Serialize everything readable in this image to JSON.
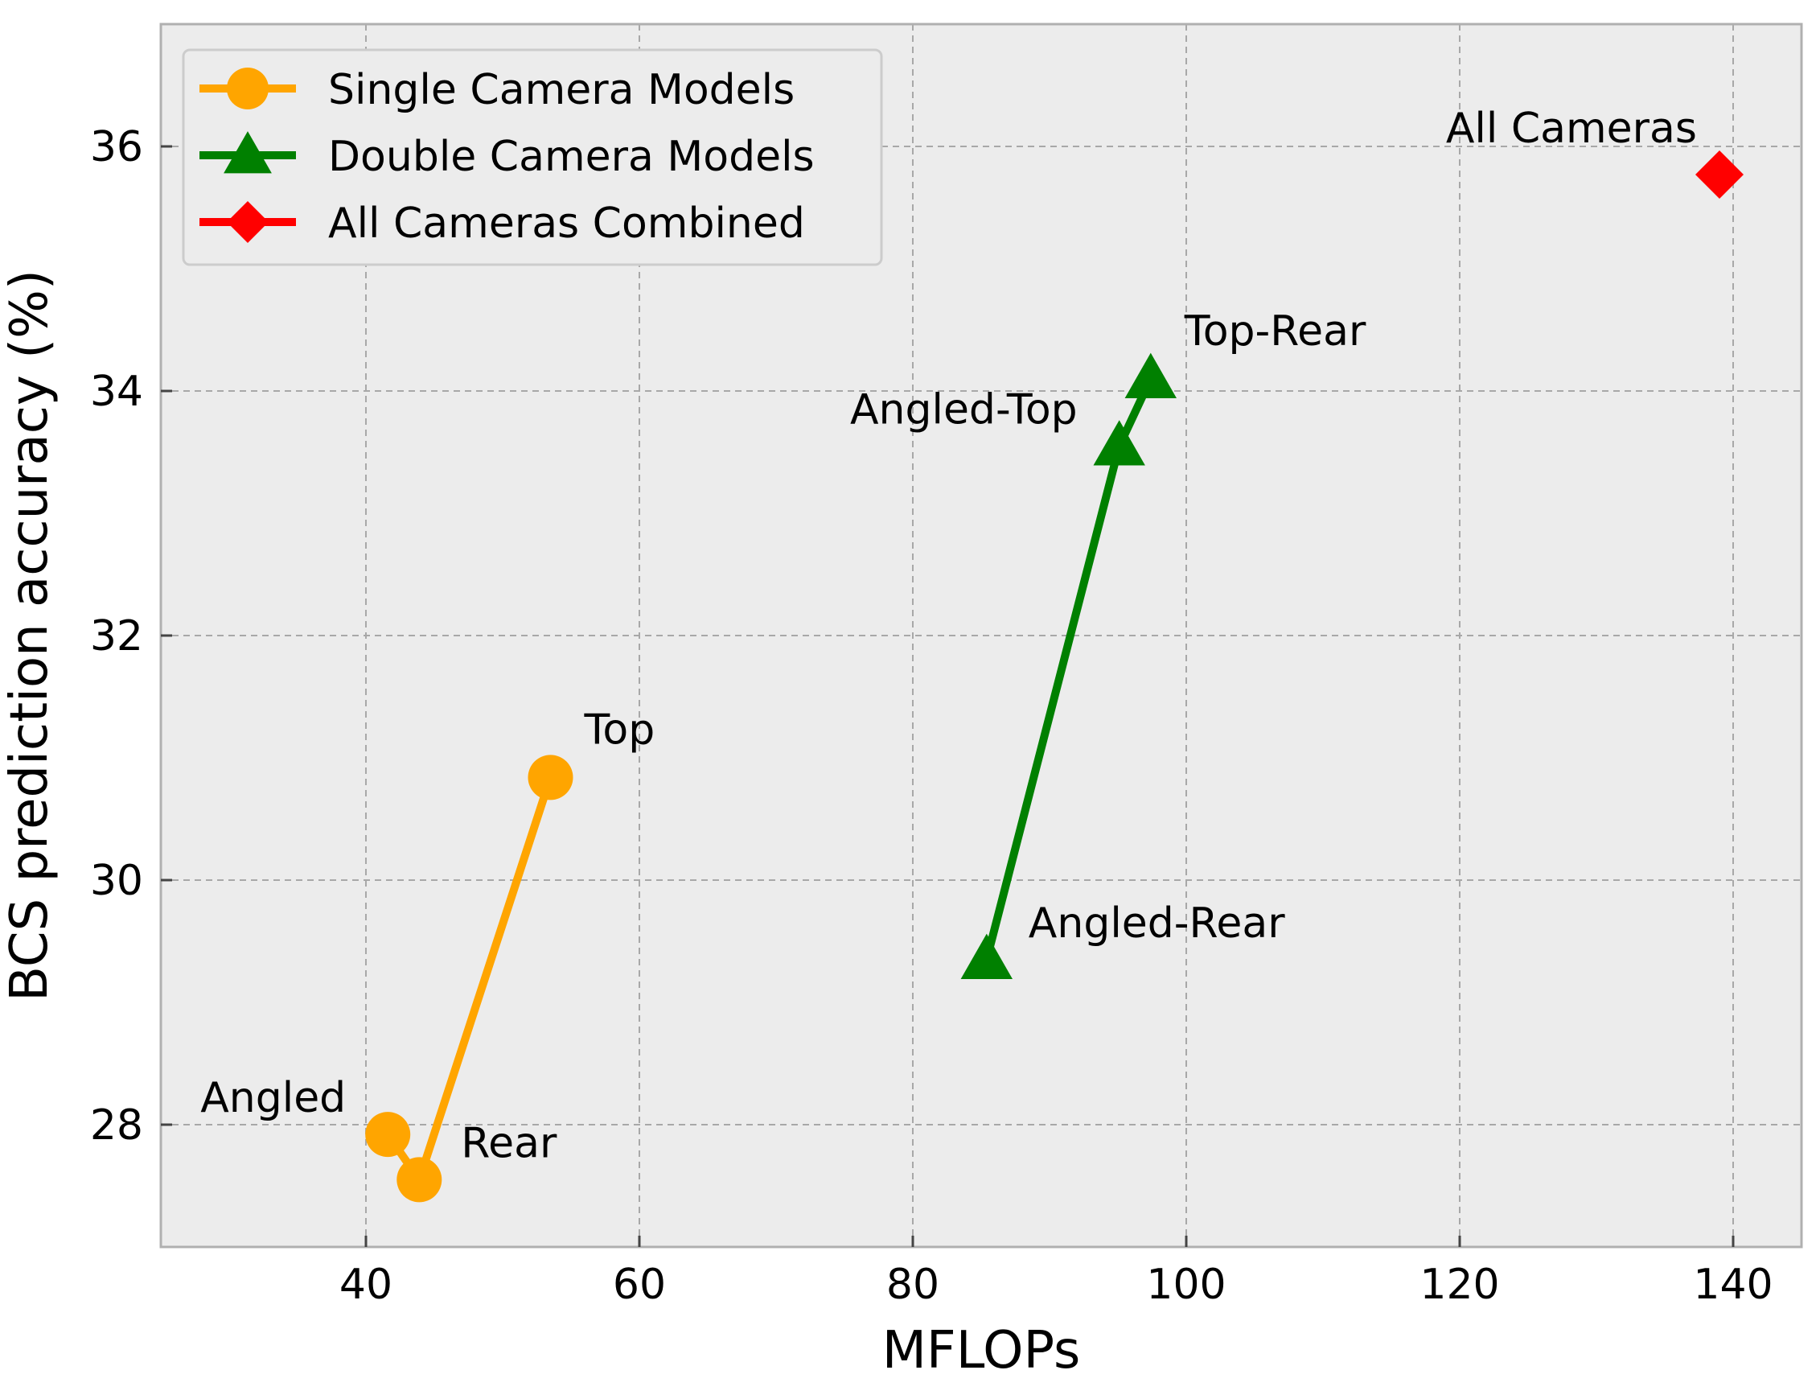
{
  "chart_data": {
    "type": "line",
    "title": "",
    "xlabel": "MFLOPs",
    "ylabel": "BCS prediction accuracy (%)",
    "xlim": [
      25,
      145
    ],
    "ylim": [
      27,
      37
    ],
    "xticks": [
      40,
      60,
      80,
      100,
      120,
      140
    ],
    "yticks": [
      28,
      30,
      32,
      34,
      36
    ],
    "grid": true,
    "legend_position": "top-left",
    "series": [
      {
        "name": "Single Camera Models",
        "color": "#FFA500",
        "marker": "circle",
        "points": [
          {
            "x": 41.6,
            "y": 27.92,
            "label": "Angled",
            "label_side": "left"
          },
          {
            "x": 43.9,
            "y": 27.55,
            "label": "Rear",
            "label_side": "right"
          },
          {
            "x": 53.5,
            "y": 30.84,
            "label": "Top",
            "label_side": "above-right"
          }
        ]
      },
      {
        "name": "Double Camera Models",
        "color": "#008000",
        "marker": "triangle",
        "points": [
          {
            "x": 85.4,
            "y": 29.35,
            "label": "Angled-Rear",
            "label_side": "right"
          },
          {
            "x": 95.1,
            "y": 33.55,
            "label": "Angled-Top",
            "label_side": "left"
          },
          {
            "x": 97.4,
            "y": 34.1,
            "label": "Top-Rear",
            "label_side": "above-right"
          }
        ]
      },
      {
        "name": "All Cameras Combined",
        "color": "#FF0000",
        "marker": "diamond",
        "points": [
          {
            "x": 139.0,
            "y": 35.77,
            "label": "All Cameras",
            "label_side": "above-left"
          }
        ]
      }
    ]
  }
}
